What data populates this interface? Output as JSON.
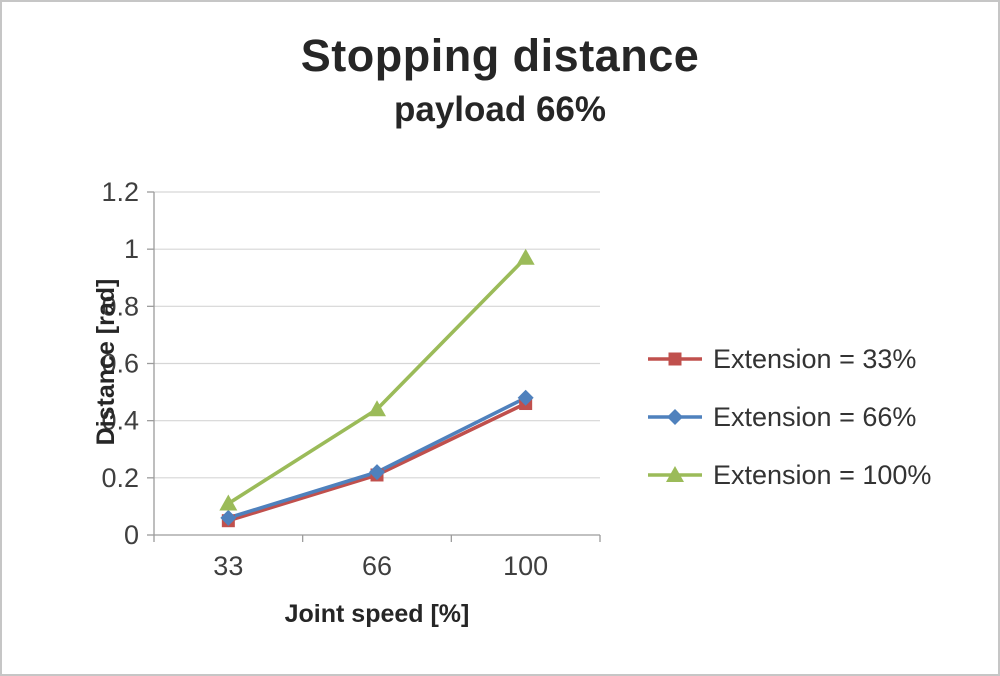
{
  "chart_data": {
    "type": "line",
    "title": "Stopping distance",
    "subtitle": "payload 66%",
    "xlabel": "Joint speed [%]",
    "ylabel": "Distance [rad]",
    "categories": [
      "33",
      "66",
      "100"
    ],
    "ylim": [
      0,
      1.2
    ],
    "yticks": [
      0,
      0.2,
      0.4,
      0.6,
      0.8,
      1,
      1.2
    ],
    "grid": true,
    "legend_position": "right",
    "series": [
      {
        "name": "Extension = 33%",
        "marker": "square",
        "color": "#C0504D",
        "values": [
          0.05,
          0.21,
          0.46
        ]
      },
      {
        "name": "Extension = 66%",
        "marker": "diamond",
        "color": "#4F81BD",
        "values": [
          0.06,
          0.22,
          0.48
        ]
      },
      {
        "name": "Extension = 100%",
        "marker": "triangle",
        "color": "#9BBB59",
        "values": [
          0.11,
          0.44,
          0.97
        ]
      }
    ],
    "colors": {
      "text": "#3f3f3f",
      "axis": "#9c9c9c",
      "gridline": "#d6d6d6"
    }
  }
}
